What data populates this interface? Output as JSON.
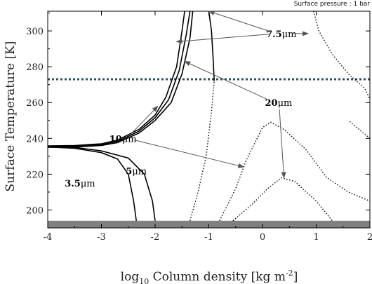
{
  "chart_data": {
    "type": "line",
    "title": "",
    "corner_note": "Surface pressure : 1 bar",
    "xlabel": {
      "main": "log",
      "sub": "10",
      "rest": " Column density [kg m",
      "sup": "-2",
      "end": "]"
    },
    "ylabel": "Surface Temperature [K]",
    "xlim": [
      -4,
      2
    ],
    "ylim": [
      190,
      311
    ],
    "xticks": [
      -4,
      -3,
      -2,
      -1,
      0,
      1,
      2
    ],
    "yticks": [
      200,
      220,
      240,
      260,
      280,
      300
    ],
    "reference_lines": [
      {
        "kind": "horizontal",
        "y": 273,
        "style": "dotted",
        "color": "#2f4f5f"
      }
    ],
    "shaded_band": {
      "y_from": 190,
      "y_to": 194,
      "color": "#808080"
    },
    "series": [
      {
        "name": "",
        "style": "solid",
        "points": [
          [
            -4.0,
            235.8
          ],
          [
            -3.5,
            236.0
          ],
          [
            -3.0,
            237.0
          ],
          [
            -2.7,
            239.0
          ],
          [
            -2.3,
            245.0
          ],
          [
            -2.0,
            253.0
          ],
          [
            -1.8,
            263.0
          ],
          [
            -1.6,
            280.0
          ],
          [
            -1.5,
            300.0
          ],
          [
            -1.45,
            311.0
          ]
        ]
      },
      {
        "name": "",
        "style": "solid",
        "points": [
          [
            -4.0,
            235.4
          ],
          [
            -3.5,
            235.6
          ],
          [
            -3.0,
            236.5
          ],
          [
            -2.7,
            238.3
          ],
          [
            -2.3,
            244.0
          ],
          [
            -2.0,
            251.5
          ],
          [
            -1.75,
            261.5
          ],
          [
            -1.55,
            278.0
          ],
          [
            -1.42,
            298.0
          ],
          [
            -1.35,
            311.0
          ]
        ]
      },
      {
        "name": "",
        "style": "solid",
        "points": [
          [
            -4.0,
            235.0
          ],
          [
            -3.5,
            235.2
          ],
          [
            -3.0,
            236.0
          ],
          [
            -2.7,
            237.6
          ],
          [
            -2.3,
            243.0
          ],
          [
            -2.0,
            250.0
          ],
          [
            -1.7,
            260.0
          ],
          [
            -1.5,
            276.0
          ],
          [
            -1.35,
            296.0
          ],
          [
            -1.3,
            311.0
          ]
        ]
      },
      {
        "name": "",
        "style": "solid",
        "points": [
          [
            -4.0,
            235.2
          ],
          [
            -3.5,
            234.5
          ],
          [
            -3.0,
            232.0
          ],
          [
            -2.7,
            228.5
          ],
          [
            -2.5,
            220.0
          ],
          [
            -2.4,
            205.0
          ],
          [
            -2.35,
            194.0
          ]
        ]
      },
      {
        "name": "",
        "style": "solid",
        "points": [
          [
            -4.0,
            235.6
          ],
          [
            -3.5,
            235.0
          ],
          [
            -3.0,
            233.0
          ],
          [
            -2.5,
            229.0
          ],
          [
            -2.2,
            220.0
          ],
          [
            -2.05,
            205.0
          ],
          [
            -2.0,
            194.0
          ]
        ]
      },
      {
        "name": "",
        "style": "solid",
        "points": [
          [
            -1.0,
            311.0
          ],
          [
            -0.95,
            300.0
          ],
          [
            -0.92,
            285.0
          ],
          [
            -0.9,
            272.0
          ]
        ]
      },
      {
        "name": "",
        "style": "dotted",
        "points": [
          [
            -1.35,
            194.0
          ],
          [
            -1.2,
            210.0
          ],
          [
            -1.05,
            230.0
          ],
          [
            -0.95,
            255.0
          ],
          [
            -0.9,
            272.0
          ]
        ]
      },
      {
        "name": "",
        "style": "dotted",
        "points": [
          [
            -0.8,
            194.0
          ],
          [
            -0.5,
            212.0
          ],
          [
            -0.3,
            228.0
          ],
          [
            0.0,
            246.0
          ],
          [
            0.15,
            249.0
          ],
          [
            0.4,
            245.0
          ],
          [
            0.8,
            234.0
          ],
          [
            1.2,
            218.0
          ],
          [
            1.6,
            210.0
          ],
          [
            2.0,
            205.0
          ]
        ]
      },
      {
        "name": "",
        "style": "dotted",
        "points": [
          [
            -0.55,
            194.0
          ],
          [
            -0.2,
            203.0
          ],
          [
            0.1,
            212.0
          ],
          [
            0.35,
            218.0
          ],
          [
            0.6,
            216.0
          ],
          [
            1.0,
            205.0
          ],
          [
            1.3,
            194.0
          ]
        ]
      },
      {
        "name": "",
        "style": "dotted",
        "points": [
          [
            0.95,
            311.0
          ],
          [
            1.05,
            300.0
          ],
          [
            1.3,
            287.0
          ],
          [
            1.6,
            276.0
          ],
          [
            1.9,
            268.0
          ],
          [
            2.0,
            262.0
          ]
        ]
      },
      {
        "name": "",
        "style": "dotted",
        "points": [
          [
            2.0,
            240.0
          ],
          [
            1.6,
            250.0
          ]
        ]
      }
    ],
    "annotations": [
      {
        "label": "7.5",
        "unit": "μm",
        "text_at": [
          0.35,
          298.5
        ],
        "arrows_to": [
          [
            -1.6,
            294.0
          ],
          [
            -1.0,
            311.0
          ],
          [
            0.85,
            298.5
          ]
        ]
      },
      {
        "label": "20",
        "unit": "μm",
        "text_at": [
          0.3,
          260.0
        ],
        "arrows_to": [
          [
            -1.45,
            283.0
          ],
          [
            0.4,
            218.0
          ]
        ]
      },
      {
        "label": "10",
        "unit": "μm",
        "text_at": [
          -2.6,
          240.0
        ],
        "arrows_to": [
          [
            -1.95,
            258.0
          ],
          [
            -0.35,
            224.0
          ]
        ]
      },
      {
        "label": "5",
        "unit": "μm",
        "text_at": [
          -2.35,
          222.0
        ],
        "arrows_to": []
      },
      {
        "label": "3.5",
        "unit": "μm",
        "text_at": [
          -3.4,
          215.0
        ],
        "arrows_to": []
      }
    ]
  }
}
